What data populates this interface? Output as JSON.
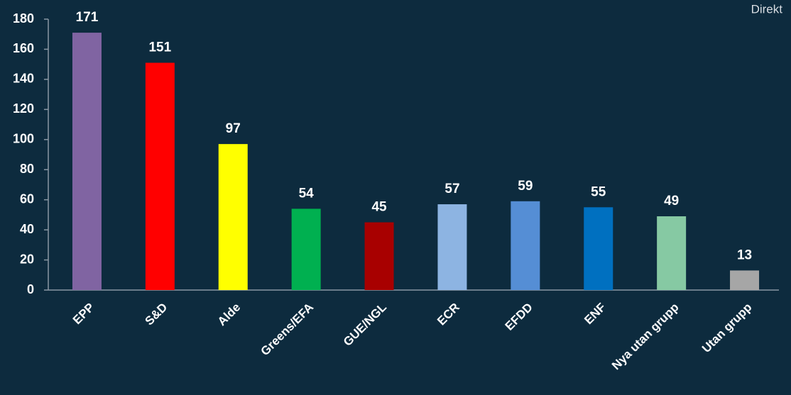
{
  "chart_data": {
    "type": "bar",
    "badge": "Direkt",
    "categories": [
      "EPP",
      "S&D",
      "Alde",
      "Greens/EFA",
      "GUE/NGL",
      "ECR",
      "EFDD",
      "ENF",
      "Nya utan grupp",
      "Utan grupp"
    ],
    "values": [
      171,
      151,
      97,
      54,
      45,
      57,
      59,
      55,
      49,
      13
    ],
    "colors": [
      "#8064a2",
      "#ff0000",
      "#ffff00",
      "#00b050",
      "#a80000",
      "#8db4e2",
      "#558ed5",
      "#0070c0",
      "#86c9a3",
      "#a6a6a6"
    ],
    "ylim": [
      0,
      180
    ],
    "yticks": [
      0,
      20,
      40,
      60,
      80,
      100,
      120,
      140,
      160,
      180
    ],
    "grid": false
  }
}
